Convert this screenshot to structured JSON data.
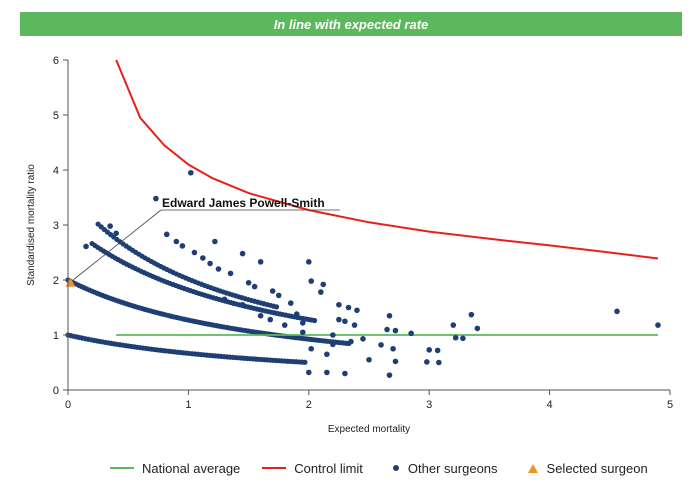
{
  "banner": {
    "text": "In line with expected rate"
  },
  "chart_data": {
    "type": "scatter",
    "xlabel": "Expected mortality",
    "ylabel": "Standardised mortality ratio",
    "xlim": [
      0,
      5
    ],
    "ylim": [
      0,
      6
    ],
    "x_ticks": [
      "0",
      "1",
      "2",
      "3",
      "4",
      "5"
    ],
    "y_ticks": [
      "0",
      "1",
      "2",
      "3",
      "4",
      "5",
      "6"
    ],
    "grid": false,
    "legend": "bottom",
    "series": [
      {
        "name": "National average",
        "kind": "line",
        "color": "#5cb85c",
        "points": [
          [
            0.4,
            1.0
          ],
          [
            4.9,
            1.0
          ]
        ]
      },
      {
        "name": "Control limit",
        "kind": "line",
        "color": "#e8201b",
        "points": [
          [
            0.4,
            6.0
          ],
          [
            0.6,
            4.95
          ],
          [
            0.8,
            4.45
          ],
          [
            1.0,
            4.1
          ],
          [
            1.2,
            3.85
          ],
          [
            1.5,
            3.58
          ],
          [
            2.0,
            3.27
          ],
          [
            2.5,
            3.05
          ],
          [
            3.0,
            2.88
          ],
          [
            3.5,
            2.75
          ],
          [
            4.0,
            2.63
          ],
          [
            4.5,
            2.5
          ],
          [
            4.9,
            2.39
          ]
        ]
      },
      {
        "name": "Other surgeons",
        "kind": "scatter",
        "color": "#1f3f74",
        "points": [
          [
            1.02,
            3.95
          ],
          [
            0.73,
            3.48
          ],
          [
            0.35,
            2.98
          ],
          [
            0.82,
            2.83
          ],
          [
            0.15,
            2.61
          ],
          [
            0.4,
            2.85
          ],
          [
            0.9,
            2.7
          ],
          [
            0.95,
            2.62
          ],
          [
            1.22,
            2.7
          ],
          [
            1.45,
            2.48
          ],
          [
            1.6,
            2.33
          ],
          [
            2.0,
            2.33
          ],
          [
            2.02,
            1.98
          ],
          [
            2.12,
            1.92
          ],
          [
            2.1,
            1.78
          ],
          [
            2.25,
            1.55
          ],
          [
            2.33,
            1.5
          ],
          [
            2.4,
            1.45
          ],
          [
            2.67,
            1.35
          ],
          [
            2.65,
            1.1
          ],
          [
            2.72,
            1.08
          ],
          [
            2.85,
            1.03
          ],
          [
            3.2,
            1.18
          ],
          [
            3.35,
            1.37
          ],
          [
            3.4,
            1.12
          ],
          [
            3.22,
            0.95
          ],
          [
            3.28,
            0.94
          ],
          [
            3.0,
            0.73
          ],
          [
            3.07,
            0.72
          ],
          [
            2.98,
            0.51
          ],
          [
            3.08,
            0.5
          ],
          [
            2.67,
            0.27
          ],
          [
            2.6,
            0.82
          ],
          [
            2.7,
            0.75
          ],
          [
            2.25,
            1.28
          ],
          [
            2.3,
            1.25
          ],
          [
            2.38,
            1.18
          ],
          [
            2.35,
            0.88
          ],
          [
            2.2,
            0.83
          ],
          [
            2.02,
            0.75
          ],
          [
            2.15,
            0.65
          ],
          [
            2.0,
            0.32
          ],
          [
            2.15,
            0.32
          ],
          [
            2.3,
            0.3
          ],
          [
            2.5,
            0.55
          ],
          [
            2.72,
            0.52
          ],
          [
            4.56,
            1.43
          ],
          [
            4.9,
            1.18
          ],
          [
            1.05,
            2.5
          ],
          [
            1.12,
            2.4
          ],
          [
            1.18,
            2.3
          ],
          [
            1.25,
            2.2
          ],
          [
            1.35,
            2.12
          ],
          [
            1.5,
            1.95
          ],
          [
            1.55,
            1.88
          ],
          [
            1.7,
            1.8
          ],
          [
            1.75,
            1.72
          ],
          [
            1.85,
            1.58
          ],
          [
            1.9,
            1.38
          ],
          [
            1.95,
            1.22
          ],
          [
            1.3,
            1.65
          ],
          [
            1.45,
            1.55
          ],
          [
            1.6,
            1.35
          ],
          [
            1.68,
            1.28
          ],
          [
            1.8,
            1.18
          ],
          [
            1.95,
            1.05
          ],
          [
            2.2,
            1.0
          ],
          [
            2.45,
            0.93
          ]
        ]
      },
      {
        "name": "Selected surgeon",
        "kind": "scatter",
        "color": "#f0922b",
        "points": [
          [
            0.02,
            1.95
          ]
        ]
      }
    ],
    "annotations": [
      {
        "text": "Edward James Powell-Smith",
        "x": 0.02,
        "y": 1.95
      }
    ]
  },
  "legend": {
    "national": "National average",
    "control": "Control limit",
    "others": "Other surgeons",
    "selected": "Selected surgeon"
  }
}
